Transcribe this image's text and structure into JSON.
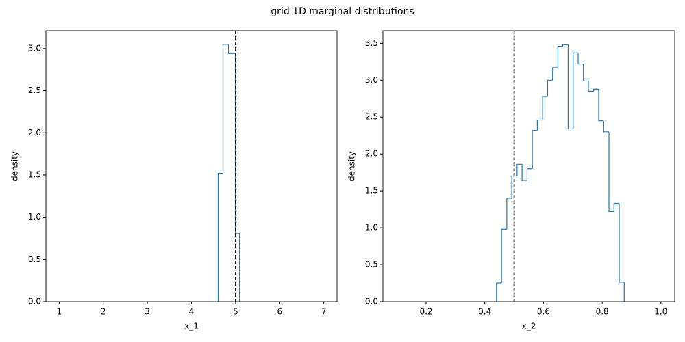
{
  "title": "grid 1D marginal distributions",
  "chart_data": [
    {
      "type": "histogram",
      "x_label": "x_1",
      "y_label": "density",
      "color": "#1f77b4",
      "bins": [
        4.606,
        4.715,
        4.84,
        4.995,
        5.09
      ],
      "values": [
        1.52,
        3.05,
        2.94,
        0.81
      ],
      "vline": 5.0,
      "xlim": [
        0.7,
        7.3
      ],
      "ylim": [
        0,
        3.21
      ],
      "xticks": [
        1,
        2,
        3,
        4,
        5,
        6,
        7
      ],
      "yticks": [
        {
          "value": 0,
          "label": "0.0"
        },
        0.5,
        {
          "value": 1,
          "label": "1.0"
        },
        1.5,
        {
          "value": 2,
          "label": "2.0"
        },
        2.5,
        {
          "value": 3,
          "label": "3.0"
        }
      ]
    },
    {
      "type": "histogram",
      "x_label": "x_2",
      "y_label": "density",
      "color": "#1f77b4",
      "bins": [
        0.44,
        0.457,
        0.475,
        0.492,
        0.51,
        0.527,
        0.544,
        0.562,
        0.579,
        0.597,
        0.614,
        0.631,
        0.649,
        0.666,
        0.684,
        0.701,
        0.718,
        0.736,
        0.753,
        0.771,
        0.788,
        0.805,
        0.823,
        0.84,
        0.858,
        0.875
      ],
      "values": [
        0.25,
        0.98,
        1.4,
        1.7,
        1.86,
        1.64,
        1.8,
        2.32,
        2.46,
        2.78,
        3.0,
        3.17,
        3.46,
        3.48,
        2.34,
        3.37,
        3.22,
        2.99,
        2.85,
        2.88,
        2.45,
        2.3,
        1.22,
        1.33,
        0.26
      ],
      "vline": 0.5,
      "xlim": [
        0.053,
        1.047
      ],
      "ylim": [
        0,
        3.67
      ],
      "xticks": [
        0.2,
        0.4,
        0.6,
        0.8,
        {
          "value": 1,
          "label": "1.0"
        }
      ],
      "yticks": [
        {
          "value": 0,
          "label": "0.0"
        },
        0.5,
        {
          "value": 1,
          "label": "1.0"
        },
        1.5,
        {
          "value": 2,
          "label": "2.0"
        },
        2.5,
        {
          "value": 3,
          "label": "3.0"
        },
        3.5
      ]
    }
  ]
}
